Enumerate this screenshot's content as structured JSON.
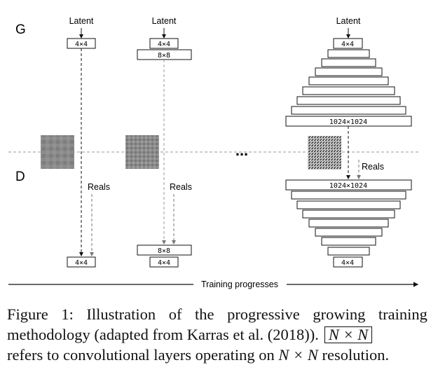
{
  "labels": {
    "generator": "G",
    "discriminator": "D",
    "latent": "Latent",
    "reals": "Reals",
    "ellipsis": "...",
    "training": "Training progresses"
  },
  "blocks": {
    "b4": "4×4",
    "b8": "8×8",
    "b1024": "1024×1024"
  },
  "caption": {
    "w1": "Figure",
    "w2": "1:",
    "w3": "Illustration",
    "w4": "of",
    "w5": "the",
    "w6": "progressive",
    "w7": "growing",
    "w8": "training",
    "line2_text": "methodology (adapted from Karras et al. (2018)).",
    "box": "N × N",
    "line3_pre": "refers to convolutional layers operating on ",
    "line3_n": "N × N",
    "line3_post": " resolution."
  }
}
